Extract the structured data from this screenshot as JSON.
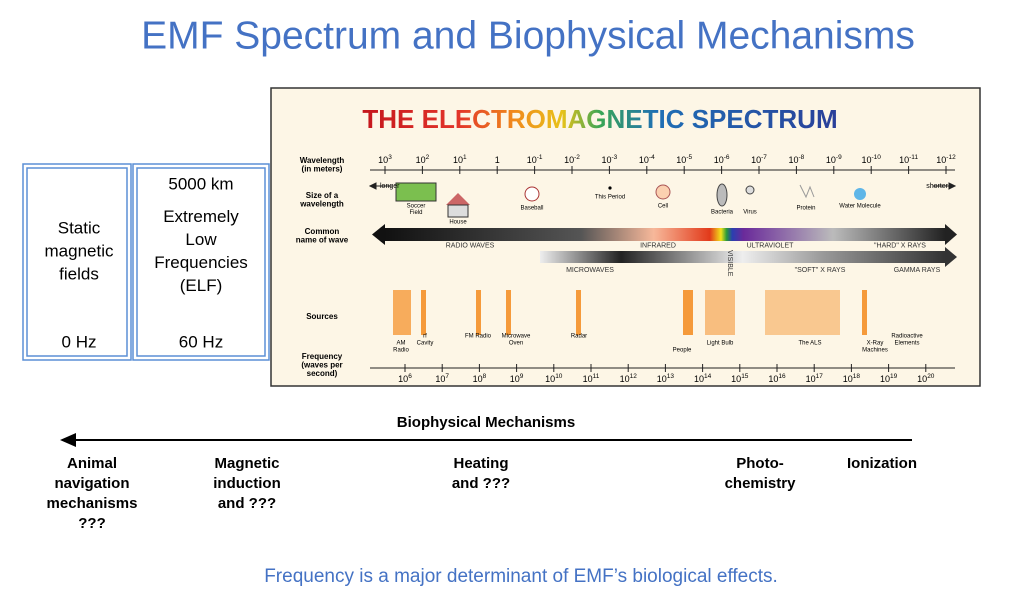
{
  "title": "EMF Spectrum and Biophysical Mechanisms",
  "boxes": [
    {
      "top": null,
      "label": [
        "Static",
        "magnetic",
        "fields"
      ],
      "bottom": "0 Hz"
    },
    {
      "top": "5000 km",
      "label": [
        "Extremely",
        "Low",
        "Frequencies",
        "(ELF)"
      ],
      "bottom": "60 Hz"
    }
  ],
  "spectrum": {
    "title": "THE ELECTROMAGNETIC SPECTRUM",
    "row_labels": [
      [
        "Wavelength",
        "(in meters)"
      ],
      [
        "Size of a",
        "wavelength"
      ],
      [
        "Common",
        "name of wave"
      ],
      [
        "Sources"
      ],
      [
        "Frequency",
        "(waves per",
        "second)"
      ]
    ],
    "longer": "longer",
    "shorter": "shorter",
    "wavelength_ticks": [
      {
        "base": "10",
        "exp": "3"
      },
      {
        "base": "10",
        "exp": "2"
      },
      {
        "base": "10",
        "exp": "1"
      },
      {
        "base": "1",
        "exp": null
      },
      {
        "base": "10",
        "exp": "-1"
      },
      {
        "base": "10",
        "exp": "-2"
      },
      {
        "base": "10",
        "exp": "-3"
      },
      {
        "base": "10",
        "exp": "-4"
      },
      {
        "base": "10",
        "exp": "-5"
      },
      {
        "base": "10",
        "exp": "-6"
      },
      {
        "base": "10",
        "exp": "-7"
      },
      {
        "base": "10",
        "exp": "-8"
      },
      {
        "base": "10",
        "exp": "-9"
      },
      {
        "base": "10",
        "exp": "-10"
      },
      {
        "base": "10",
        "exp": "-11"
      },
      {
        "base": "10",
        "exp": "-12"
      }
    ],
    "sizes": [
      [
        "Soccer",
        "Field"
      ],
      [
        "House"
      ],
      [
        "Baseball"
      ],
      [
        "This Period"
      ],
      [
        "Cell"
      ],
      [
        "Bacteria"
      ],
      [
        "Virus"
      ],
      [
        "Protein"
      ],
      [
        "Water Molecule"
      ]
    ],
    "waves_top": [
      "RADIO WAVES",
      "INFRARED",
      "ULTRAVIOLET",
      "\"HARD\" X RAYS"
    ],
    "visible": "VISIBLE",
    "waves_bottom": [
      "MICROWAVES",
      "\"SOFT\" X RAYS",
      "GAMMA RAYS"
    ],
    "sources": [
      [
        "AM",
        "Radio"
      ],
      [
        "rf",
        "Cavity"
      ],
      [
        "FM Radio"
      ],
      [
        "Microwave",
        "Oven"
      ],
      [
        "Radar"
      ],
      [
        "People"
      ],
      [
        "Light Bulb"
      ],
      [
        "The ALS"
      ],
      [
        "X-Ray",
        "Machines"
      ],
      [
        "Radioactive",
        "Elements"
      ]
    ],
    "frequency_ticks": [
      {
        "base": "10",
        "exp": "6"
      },
      {
        "base": "10",
        "exp": "7"
      },
      {
        "base": "10",
        "exp": "8"
      },
      {
        "base": "10",
        "exp": "9"
      },
      {
        "base": "10",
        "exp": "10"
      },
      {
        "base": "10",
        "exp": "11"
      },
      {
        "base": "10",
        "exp": "12"
      },
      {
        "base": "10",
        "exp": "13"
      },
      {
        "base": "10",
        "exp": "14"
      },
      {
        "base": "10",
        "exp": "15"
      },
      {
        "base": "10",
        "exp": "16"
      },
      {
        "base": "10",
        "exp": "17"
      },
      {
        "base": "10",
        "exp": "18"
      },
      {
        "base": "10",
        "exp": "19"
      },
      {
        "base": "10",
        "exp": "20"
      }
    ]
  },
  "mechanisms": {
    "heading": "Biophysical Mechanisms",
    "items": [
      [
        "Animal",
        "navigation",
        "mechanisms",
        "???"
      ],
      [
        "Magnetic",
        "induction",
        "and ???"
      ],
      [
        "Heating",
        "and ???"
      ],
      [
        "Photo-",
        "chemistry"
      ],
      [
        "Ionization"
      ]
    ]
  },
  "footer": "Frequency is a major determinant of EMF’s biological effects."
}
